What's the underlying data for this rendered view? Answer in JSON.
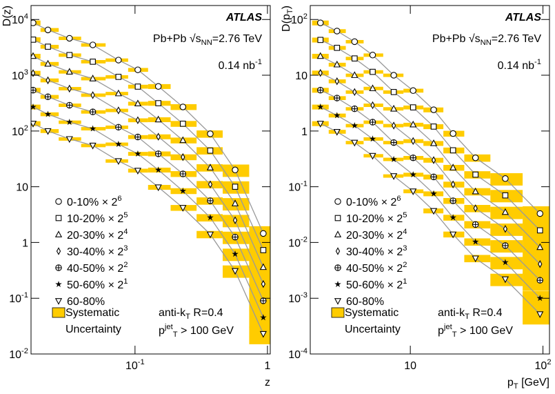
{
  "chart_data": [
    {
      "type": "scatter",
      "log_x": true,
      "log_y": true,
      "ylabel": [
        {
          "t": "D(z)"
        }
      ],
      "xlabel": [
        {
          "t": "z"
        }
      ],
      "experiment": "ATLAS",
      "collision": [
        {
          "t": "Pb+Pb "
        },
        {
          "t": "√"
        },
        {
          "t": "s"
        },
        {
          "t": "NN",
          "s": "sub"
        },
        {
          "t": "=2.76 TeV"
        }
      ],
      "luminosity": [
        {
          "t": "0.14 nb"
        },
        {
          "t": "-1",
          "s": "sup"
        }
      ],
      "jet_algo": [
        {
          "t": "anti-k"
        },
        {
          "t": "T",
          "s": "sub"
        },
        {
          "t": " R=0.4"
        }
      ],
      "jet_cut": [
        {
          "t": "p"
        },
        {
          "t": "jet",
          "s": "sup"
        },
        {
          "t": "T",
          "s": "sub"
        },
        {
          "t": " > 100 GeV"
        }
      ],
      "systematic_label": [
        "Systematic",
        "Uncertainty"
      ],
      "sys_color": "#ffcc00",
      "line_color": "#999999",
      "marker_color": "#000000",
      "xlim": [
        0.0164,
        1.05
      ],
      "ylim": [
        0.01,
        17800
      ],
      "xticks": [
        {
          "value": 0.1,
          "label": [
            {
              "t": "10"
            },
            {
              "t": "-1",
              "s": "sup"
            }
          ]
        },
        1
      ],
      "yticks": [
        {
          "value": 0.01,
          "label": [
            {
              "t": "10"
            },
            {
              "t": "-2",
              "s": "sup"
            }
          ]
        },
        {
          "value": 0.1,
          "label": [
            {
              "t": "10"
            },
            {
              "t": "-1",
              "s": "sup"
            }
          ]
        },
        1,
        10,
        {
          "value": 100,
          "label": [
            {
              "t": "10"
            },
            {
              "t": "2",
              "s": "sup"
            }
          ]
        },
        {
          "value": 1000,
          "label": [
            {
              "t": "10"
            },
            {
              "t": "3",
              "s": "sup"
            }
          ]
        },
        {
          "value": 10000,
          "label": [
            {
              "t": "10"
            },
            {
              "t": "4",
              "s": "sup"
            }
          ]
        }
      ],
      "x": [
        0.017,
        0.022,
        0.032,
        0.048,
        0.075,
        0.105,
        0.15,
        0.23,
        0.37,
        0.57,
        0.93
      ],
      "errors": [
        0.1,
        0.08,
        0.07,
        0.07,
        0.07,
        0.08,
        0.1,
        0.12,
        0.15,
        0.25,
        0.35
      ],
      "series": [
        {
          "name": [
            {
              "t": "0-10% × 2"
            },
            {
              "t": "6",
              "s": "sup"
            }
          ],
          "marker": "circle",
          "values": [
            8700,
            6500,
            4600,
            3500,
            1870,
            1250,
            630,
            270,
            89,
            20,
            1.45
          ]
        },
        {
          "name": [
            {
              "t": "10-20% × 2"
            },
            {
              "t": "5",
              "s": "sup"
            }
          ],
          "marker": "square",
          "values": [
            4350,
            3250,
            2300,
            1750,
            935,
            625,
            315,
            135,
            44.5,
            10,
            0.73
          ]
        },
        {
          "name": [
            {
              "t": "20-30% × 2"
            },
            {
              "t": "4",
              "s": "sup"
            }
          ],
          "marker": "triangle",
          "values": [
            2200,
            1600,
            1150,
            870,
            470,
            310,
            160,
            68,
            22,
            5,
            0.36
          ]
        },
        {
          "name": [
            {
              "t": "30-40% × 2"
            },
            {
              "t": "3",
              "s": "sup"
            }
          ],
          "marker": "diamond",
          "values": [
            1090,
            810,
            575,
            440,
            234,
            156,
            79,
            34,
            11,
            2.5,
            0.18
          ]
        },
        {
          "name": [
            {
              "t": "40-50% × 2"
            },
            {
              "t": "2",
              "s": "sup"
            }
          ],
          "marker": "cross-circle",
          "values": [
            540,
            410,
            290,
            220,
            117,
            78,
            39,
            17,
            5.6,
            1.25,
            0.09
          ]
        },
        {
          "name": [
            {
              "t": "50-60% × 2"
            },
            {
              "t": "1",
              "s": "sup"
            }
          ],
          "marker": "star",
          "values": [
            270,
            200,
            144,
            110,
            58,
            39,
            20,
            8.4,
            2.8,
            0.62,
            0.045
          ]
        },
        {
          "name": [
            {
              "t": "60-80%"
            }
          ],
          "marker": "inverted-triangle",
          "values": [
            136,
            100,
            72,
            55,
            29,
            19.5,
            9.8,
            4.2,
            1.4,
            0.31,
            0.023
          ]
        }
      ]
    },
    {
      "type": "scatter",
      "log_x": true,
      "log_y": true,
      "ylabel": [
        {
          "t": "D(p"
        },
        {
          "t": "T",
          "s": "sub"
        },
        {
          "t": ")"
        }
      ],
      "xlabel": [
        {
          "t": "p"
        },
        {
          "t": "T",
          "s": "sub"
        },
        {
          "t": " [GeV]"
        }
      ],
      "experiment": "ATLAS",
      "collision": [
        {
          "t": "Pb+Pb "
        },
        {
          "t": "√"
        },
        {
          "t": "s"
        },
        {
          "t": "NN",
          "s": "sub"
        },
        {
          "t": "=2.76 TeV"
        }
      ],
      "luminosity": [
        {
          "t": "0.14 nb"
        },
        {
          "t": "-1",
          "s": "sup"
        }
      ],
      "jet_algo": [
        {
          "t": "anti-k"
        },
        {
          "t": "T",
          "s": "sub"
        },
        {
          "t": " R=0.4"
        }
      ],
      "jet_cut": [
        {
          "t": "p"
        },
        {
          "t": "jet",
          "s": "sup"
        },
        {
          "t": "T",
          "s": "sub"
        },
        {
          "t": " > 100 GeV"
        }
      ],
      "systematic_label": [
        "Systematic",
        "Uncertainty"
      ],
      "sys_color": "#ffcc00",
      "line_color": "#999999",
      "marker_color": "#000000",
      "xlim": [
        1.76,
        112
      ],
      "ylim": [
        0.0001,
        178
      ],
      "xticks": [
        10,
        {
          "value": 100,
          "label": [
            {
              "t": "10"
            },
            {
              "t": "2",
              "s": "sup"
            }
          ]
        }
      ],
      "yticks": [
        {
          "value": 0.0001,
          "label": [
            {
              "t": "10"
            },
            {
              "t": "-4",
              "s": "sup"
            }
          ]
        },
        {
          "value": 0.001,
          "label": [
            {
              "t": "10"
            },
            {
              "t": "-3",
              "s": "sup"
            }
          ]
        },
        {
          "value": 0.01,
          "label": [
            {
              "t": "10"
            },
            {
              "t": "-2",
              "s": "sup"
            }
          ]
        },
        {
          "value": 0.1,
          "label": [
            {
              "t": "10"
            },
            {
              "t": "-1",
              "s": "sup"
            }
          ]
        },
        1,
        10,
        {
          "value": 100,
          "label": [
            {
              "t": "10"
            },
            {
              "t": "2",
              "s": "sup"
            }
          ]
        }
      ],
      "x": [
        2.1,
        2.8,
        3.8,
        5.2,
        7.5,
        10.5,
        15,
        21,
        31,
        52,
        95
      ],
      "errors": [
        0.1,
        0.08,
        0.07,
        0.07,
        0.07,
        0.08,
        0.1,
        0.12,
        0.15,
        0.25,
        0.35
      ],
      "series": [
        {
          "name": [
            {
              "t": "0-10% × 2"
            },
            {
              "t": "6",
              "s": "sup"
            }
          ],
          "marker": "circle",
          "values": [
            87,
            62,
            40,
            23,
            10,
            5.3,
            2.4,
            0.9,
            0.33,
            0.14,
            0.033
          ]
        },
        {
          "name": [
            {
              "t": "10-20% × 2"
            },
            {
              "t": "5",
              "s": "sup"
            }
          ],
          "marker": "square",
          "values": [
            43,
            31,
            20,
            11.5,
            5,
            2.65,
            1.2,
            0.45,
            0.165,
            0.07,
            0.0165
          ]
        },
        {
          "name": [
            {
              "t": "20-30% × 2"
            },
            {
              "t": "4",
              "s": "sup"
            }
          ],
          "marker": "triangle",
          "values": [
            22,
            15.5,
            10,
            5.8,
            2.5,
            1.3,
            0.6,
            0.22,
            0.082,
            0.035,
            0.0082
          ]
        },
        {
          "name": [
            {
              "t": "30-40% × 2"
            },
            {
              "t": "3",
              "s": "sup"
            }
          ],
          "marker": "diamond",
          "values": [
            11,
            7.8,
            5,
            2.9,
            1.25,
            0.66,
            0.3,
            0.11,
            0.041,
            0.0175,
            0.0041
          ]
        },
        {
          "name": [
            {
              "t": "40-50% × 2"
            },
            {
              "t": "2",
              "s": "sup"
            }
          ],
          "marker": "cross-circle",
          "values": [
            5.4,
            3.9,
            2.5,
            1.44,
            0.62,
            0.33,
            0.15,
            0.056,
            0.021,
            0.0088,
            0.0021
          ]
        },
        {
          "name": [
            {
              "t": "50-60% × 2"
            },
            {
              "t": "1",
              "s": "sup"
            }
          ],
          "marker": "star",
          "values": [
            2.7,
            1.9,
            1.25,
            0.72,
            0.31,
            0.165,
            0.075,
            0.028,
            0.0103,
            0.0044,
            0.001
          ]
        },
        {
          "name": [
            {
              "t": "60-80%"
            }
          ],
          "marker": "inverted-triangle",
          "values": [
            1.36,
            0.97,
            0.62,
            0.36,
            0.156,
            0.083,
            0.037,
            0.014,
            0.0052,
            0.0022,
            0.00052
          ]
        }
      ]
    }
  ]
}
